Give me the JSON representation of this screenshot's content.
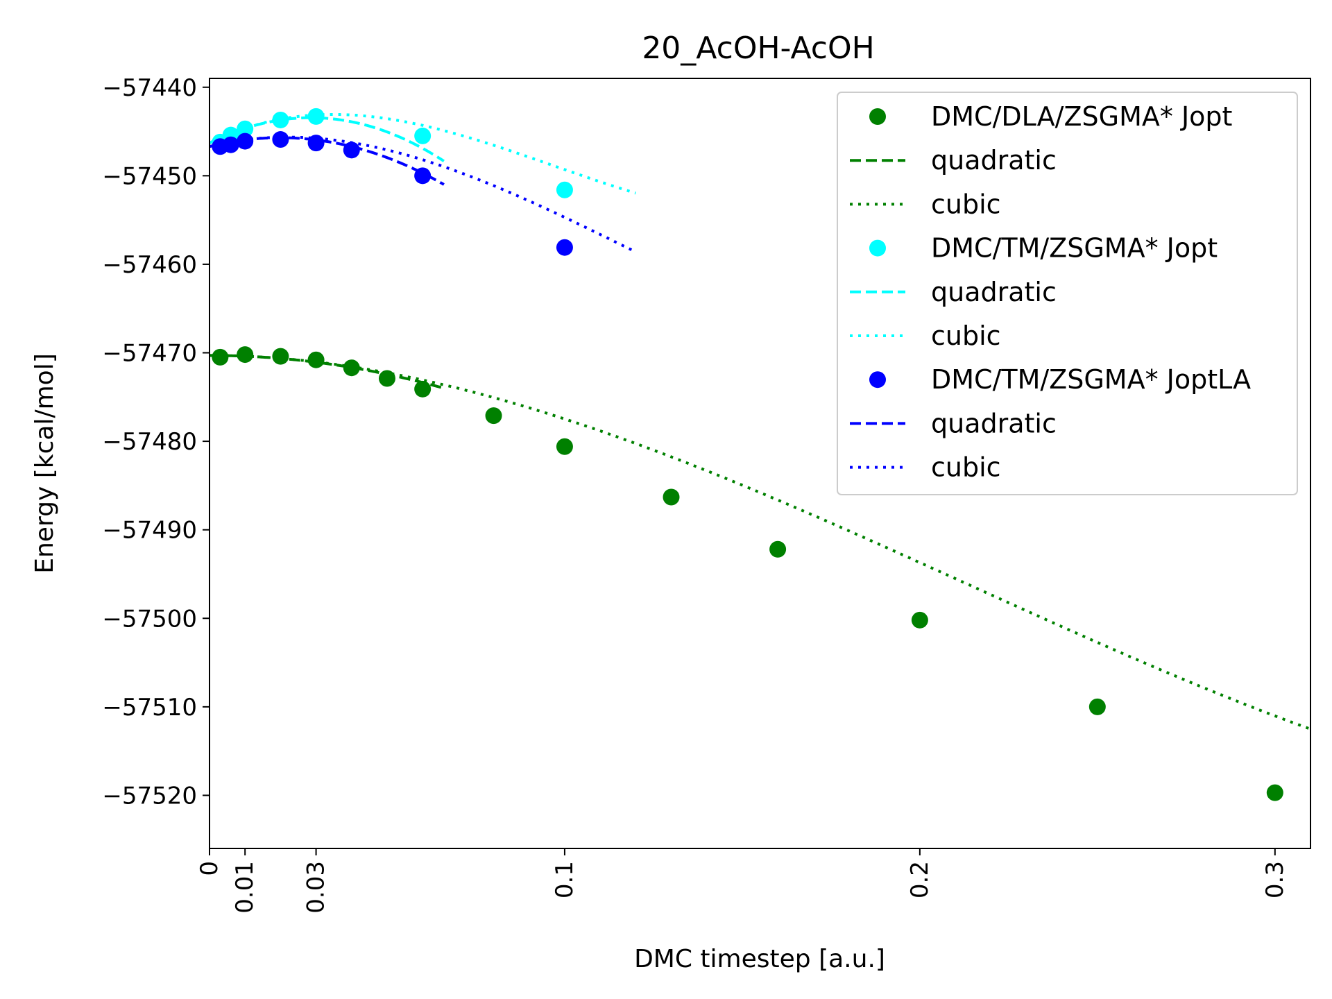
{
  "chart_data": {
    "type": "scatter",
    "title": "20_AcOH-AcOH",
    "xlabel": "DMC timestep [a.u.]",
    "ylabel": "Energy [kcal/mol]",
    "xlim": [
      0,
      0.31
    ],
    "ylim": [
      -57526,
      -57439
    ],
    "xticks": [
      {
        "value": 0,
        "label": "0"
      },
      {
        "value": 0.01,
        "label": "0.01"
      },
      {
        "value": 0.03,
        "label": "0.03"
      },
      {
        "value": 0.1,
        "label": "0.1"
      },
      {
        "value": 0.2,
        "label": "0.2"
      },
      {
        "value": 0.3,
        "label": "0.3"
      }
    ],
    "yticks": [
      {
        "value": -57440,
        "label": "−57440"
      },
      {
        "value": -57450,
        "label": "−57450"
      },
      {
        "value": -57460,
        "label": "−57460"
      },
      {
        "value": -57470,
        "label": "−57470"
      },
      {
        "value": -57480,
        "label": "−57480"
      },
      {
        "value": -57490,
        "label": "−57490"
      },
      {
        "value": -57500,
        "label": "−57500"
      },
      {
        "value": -57510,
        "label": "−57510"
      },
      {
        "value": -57520,
        "label": "−57520"
      }
    ],
    "grid": false,
    "legend_position": "top-right",
    "legend": [
      {
        "label": "DMC/DLA/ZSGMA* Jopt",
        "kind": "marker",
        "color": "#008000"
      },
      {
        "label": "quadratic",
        "kind": "dashed",
        "color": "#008000"
      },
      {
        "label": "cubic",
        "kind": "dotted",
        "color": "#008000"
      },
      {
        "label": "DMC/TM/ZSGMA* Jopt",
        "kind": "marker",
        "color": "#00ffff"
      },
      {
        "label": "quadratic",
        "kind": "dashed",
        "color": "#00ffff"
      },
      {
        "label": "cubic",
        "kind": "dotted",
        "color": "#00ffff"
      },
      {
        "label": "DMC/TM/ZSGMA* JoptLA",
        "kind": "marker",
        "color": "#0000ff"
      },
      {
        "label": "quadratic",
        "kind": "dashed",
        "color": "#0000ff"
      },
      {
        "label": "cubic",
        "kind": "dotted",
        "color": "#0000ff"
      }
    ],
    "series": [
      {
        "name": "DMC/DLA/ZSGMA* Jopt",
        "color": "#008000",
        "points": [
          {
            "x": 0.003,
            "y": -57470.5
          },
          {
            "x": 0.01,
            "y": -57470.2
          },
          {
            "x": 0.02,
            "y": -57470.4
          },
          {
            "x": 0.03,
            "y": -57470.8
          },
          {
            "x": 0.04,
            "y": -57471.7
          },
          {
            "x": 0.05,
            "y": -57472.9
          },
          {
            "x": 0.06,
            "y": -57474.1
          },
          {
            "x": 0.08,
            "y": -57477.1
          },
          {
            "x": 0.1,
            "y": -57480.6
          },
          {
            "x": 0.13,
            "y": -57486.3
          },
          {
            "x": 0.16,
            "y": -57492.2
          },
          {
            "x": 0.2,
            "y": -57500.2
          },
          {
            "x": 0.25,
            "y": -57510.0
          },
          {
            "x": 0.3,
            "y": -57519.7
          }
        ],
        "quadratic": {
          "x_range": [
            0,
            0.066
          ],
          "coef": [
            -57470.3,
            0.0,
            -850.0
          ]
        },
        "cubic": {
          "x_range": [
            0,
            0.31
          ],
          "coef": [
            -57470.3,
            0.0,
            -850.0,
            1325.0
          ]
        }
      },
      {
        "name": "DMC/TM/ZSGMA* Jopt",
        "color": "#00ffff",
        "points": [
          {
            "x": 0.003,
            "y": -57446.2
          },
          {
            "x": 0.006,
            "y": -57445.4
          },
          {
            "x": 0.01,
            "y": -57444.7
          },
          {
            "x": 0.02,
            "y": -57443.7
          },
          {
            "x": 0.03,
            "y": -57443.3
          },
          {
            "x": 0.06,
            "y": -57445.5
          },
          {
            "x": 0.1,
            "y": -57451.6
          }
        ],
        "quadratic": {
          "x_range": [
            0,
            0.066
          ],
          "coef": [
            -57446.3,
            200.0,
            -3500.0
          ]
        },
        "cubic": {
          "x_range": [
            0,
            0.12
          ],
          "coef": [
            -57446.3,
            200.0,
            -3500.0,
            12000.0
          ]
        }
      },
      {
        "name": "DMC/TM/ZSGMA* JoptLA",
        "color": "#0000ff",
        "points": [
          {
            "x": 0.003,
            "y": -57446.7
          },
          {
            "x": 0.006,
            "y": -57446.5
          },
          {
            "x": 0.01,
            "y": -57446.1
          },
          {
            "x": 0.02,
            "y": -57445.9
          },
          {
            "x": 0.03,
            "y": -57446.3
          },
          {
            "x": 0.04,
            "y": -57447.1
          },
          {
            "x": 0.06,
            "y": -57450.0
          },
          {
            "x": 0.1,
            "y": -57458.1
          }
        ],
        "quadratic": {
          "x_range": [
            0,
            0.066
          ],
          "coef": [
            -57446.7,
            100.0,
            -2500.0
          ]
        },
        "cubic": {
          "x_range": [
            0,
            0.12
          ],
          "coef": [
            -57446.7,
            100.0,
            -2500.0,
            7000.0
          ]
        }
      }
    ]
  }
}
